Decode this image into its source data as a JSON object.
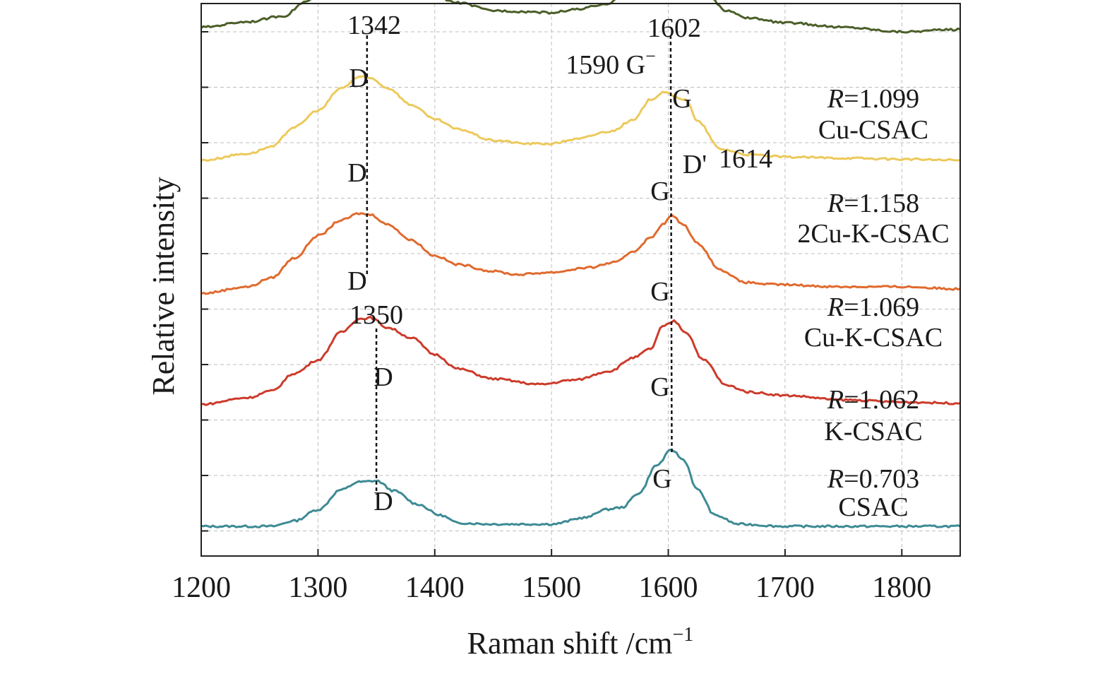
{
  "chart_data": {
    "type": "line",
    "title": "",
    "xlabel": "Raman shift /cm",
    "xlabel_sup": "−1",
    "ylabel": "Relative intensity",
    "xlim": [
      1200,
      1850
    ],
    "xticks": [
      1200,
      1300,
      1400,
      1500,
      1600,
      1700,
      1800
    ],
    "yticks_shown": false,
    "grid": true,
    "series": [
      {
        "name": "CSAC",
        "r_prefix": "R",
        "r_value": "=0.703",
        "color": "#3d8a94",
        "offset": 0,
        "points": [
          [
            1200,
            0.0
          ],
          [
            1260,
            0.0
          ],
          [
            1280,
            0.05
          ],
          [
            1300,
            0.15
          ],
          [
            1320,
            0.33
          ],
          [
            1335,
            0.4
          ],
          [
            1350,
            0.41
          ],
          [
            1365,
            0.32
          ],
          [
            1385,
            0.2
          ],
          [
            1405,
            0.1
          ],
          [
            1420,
            0.03
          ],
          [
            1450,
            0.02
          ],
          [
            1500,
            0.02
          ],
          [
            1530,
            0.08
          ],
          [
            1545,
            0.15
          ],
          [
            1560,
            0.17
          ],
          [
            1575,
            0.3
          ],
          [
            1590,
            0.55
          ],
          [
            1603,
            0.69
          ],
          [
            1613,
            0.6
          ],
          [
            1625,
            0.33
          ],
          [
            1640,
            0.1
          ],
          [
            1660,
            0.02
          ],
          [
            1700,
            0.0
          ],
          [
            1850,
            0.0
          ]
        ]
      },
      {
        "name": "K-CSAC",
        "r_prefix": "R",
        "r_value": "=1.062",
        "color": "#cc3b2b",
        "offset": 1,
        "points": [
          [
            1200,
            0.1
          ],
          [
            1240,
            0.16
          ],
          [
            1260,
            0.22
          ],
          [
            1280,
            0.38
          ],
          [
            1300,
            0.5
          ],
          [
            1320,
            0.75
          ],
          [
            1335,
            0.87
          ],
          [
            1345,
            0.88
          ],
          [
            1360,
            0.79
          ],
          [
            1380,
            0.7
          ],
          [
            1400,
            0.55
          ],
          [
            1420,
            0.42
          ],
          [
            1450,
            0.33
          ],
          [
            1490,
            0.28
          ],
          [
            1520,
            0.32
          ],
          [
            1550,
            0.4
          ],
          [
            1570,
            0.52
          ],
          [
            1585,
            0.6
          ],
          [
            1595,
            0.8
          ],
          [
            1605,
            0.85
          ],
          [
            1615,
            0.75
          ],
          [
            1630,
            0.5
          ],
          [
            1650,
            0.27
          ],
          [
            1670,
            0.21
          ],
          [
            1700,
            0.18
          ],
          [
            1750,
            0.14
          ],
          [
            1800,
            0.12
          ],
          [
            1850,
            0.11
          ]
        ]
      },
      {
        "name": "Cu-K-CSAC",
        "r_prefix": "R",
        "r_value": "=1.069",
        "color": "#e06a2e",
        "offset": 2,
        "points": [
          [
            1200,
            0.1
          ],
          [
            1240,
            0.16
          ],
          [
            1260,
            0.24
          ],
          [
            1280,
            0.42
          ],
          [
            1300,
            0.62
          ],
          [
            1320,
            0.76
          ],
          [
            1335,
            0.82
          ],
          [
            1345,
            0.81
          ],
          [
            1360,
            0.72
          ],
          [
            1380,
            0.58
          ],
          [
            1400,
            0.44
          ],
          [
            1420,
            0.36
          ],
          [
            1450,
            0.3
          ],
          [
            1470,
            0.27
          ],
          [
            1500,
            0.29
          ],
          [
            1530,
            0.33
          ],
          [
            1555,
            0.38
          ],
          [
            1570,
            0.48
          ],
          [
            1585,
            0.6
          ],
          [
            1595,
            0.72
          ],
          [
            1603,
            0.8
          ],
          [
            1613,
            0.72
          ],
          [
            1625,
            0.55
          ],
          [
            1645,
            0.31
          ],
          [
            1665,
            0.2
          ],
          [
            1690,
            0.18
          ],
          [
            1750,
            0.16
          ],
          [
            1800,
            0.16
          ],
          [
            1850,
            0.14
          ]
        ]
      },
      {
        "name": "2Cu-K-CSAC",
        "r_prefix": "R",
        "r_value": "=1.158",
        "color": "#edc95b",
        "offset": 3,
        "points": [
          [
            1200,
            0.3
          ],
          [
            1240,
            0.36
          ],
          [
            1260,
            0.42
          ],
          [
            1280,
            0.6
          ],
          [
            1300,
            0.75
          ],
          [
            1320,
            0.95
          ],
          [
            1335,
            1.05
          ],
          [
            1345,
            1.04
          ],
          [
            1360,
            0.95
          ],
          [
            1380,
            0.8
          ],
          [
            1400,
            0.67
          ],
          [
            1420,
            0.58
          ],
          [
            1450,
            0.48
          ],
          [
            1480,
            0.45
          ],
          [
            1500,
            0.45
          ],
          [
            1520,
            0.49
          ],
          [
            1550,
            0.56
          ],
          [
            1570,
            0.66
          ],
          [
            1585,
            0.85
          ],
          [
            1597,
            0.92
          ],
          [
            1605,
            0.87
          ],
          [
            1615,
            0.85
          ],
          [
            1625,
            0.65
          ],
          [
            1645,
            0.4
          ],
          [
            1670,
            0.35
          ],
          [
            1700,
            0.33
          ],
          [
            1750,
            0.32
          ],
          [
            1800,
            0.31
          ],
          [
            1850,
            0.3
          ]
        ]
      },
      {
        "name": "Cu-CSAC",
        "r_prefix": "R",
        "r_value": "=1.099",
        "color": "#4b5e29",
        "offset": 4,
        "points": [
          [
            1200,
            0.5
          ],
          [
            1240,
            0.55
          ],
          [
            1270,
            0.6
          ],
          [
            1290,
            0.73
          ],
          [
            1310,
            0.9
          ],
          [
            1330,
            1.08
          ],
          [
            1343,
            1.14
          ],
          [
            1360,
            1.02
          ],
          [
            1380,
            0.88
          ],
          [
            1400,
            0.78
          ],
          [
            1420,
            0.72
          ],
          [
            1450,
            0.65
          ],
          [
            1480,
            0.64
          ],
          [
            1500,
            0.63
          ],
          [
            1520,
            0.66
          ],
          [
            1545,
            0.7
          ],
          [
            1565,
            0.82
          ],
          [
            1580,
            0.96
          ],
          [
            1590,
            0.97
          ],
          [
            1602,
            1.05
          ],
          [
            1615,
            0.98
          ],
          [
            1630,
            0.82
          ],
          [
            1650,
            0.65
          ],
          [
            1670,
            0.58
          ],
          [
            1700,
            0.54
          ],
          [
            1750,
            0.5
          ],
          [
            1800,
            0.46
          ],
          [
            1850,
            0.48
          ]
        ]
      }
    ],
    "reference_lines": [
      {
        "label": "1342",
        "x_top": 1342,
        "x_bottom": 1342
      },
      {
        "label": "1350",
        "x_top": 1350,
        "x_bottom": 1350
      },
      {
        "label": "1602",
        "x_top": 1602,
        "x_bottom": 1602
      }
    ],
    "annotations": [
      {
        "text": "1342",
        "x": 1342,
        "series": "Cu-CSAC",
        "where": "top"
      },
      {
        "text": "1602",
        "x": 1602,
        "series": "Cu-CSAC",
        "where": "top"
      },
      {
        "text": "1590 G",
        "x": 1590,
        "series": "Cu-CSAC",
        "sup": "−"
      },
      {
        "text": "D",
        "x": 1342,
        "series": "Cu-CSAC"
      },
      {
        "text": "G",
        "x": 1602,
        "series": "Cu-CSAC"
      },
      {
        "text": "D'",
        "x": 1614,
        "series": "2Cu-K-CSAC"
      },
      {
        "text": "1614",
        "x": 1614,
        "series": "2Cu-K-CSAC"
      },
      {
        "text": "D",
        "x": 1342,
        "series": "2Cu-K-CSAC"
      },
      {
        "text": "G",
        "x": 1597,
        "series": "2Cu-K-CSAC"
      },
      {
        "text": "D",
        "x": 1342,
        "series": "Cu-K-CSAC"
      },
      {
        "text": "G",
        "x": 1603,
        "series": "Cu-K-CSAC"
      },
      {
        "text": "1350",
        "x": 1350,
        "series": "Cu-K-CSAC"
      },
      {
        "text": "D",
        "x": 1350,
        "series": "K-CSAC"
      },
      {
        "text": "G",
        "x": 1603,
        "series": "K-CSAC"
      },
      {
        "text": "G",
        "x": 1603,
        "series": "CSAC"
      },
      {
        "text": "D",
        "x": 1350,
        "series": "CSAC"
      }
    ]
  }
}
